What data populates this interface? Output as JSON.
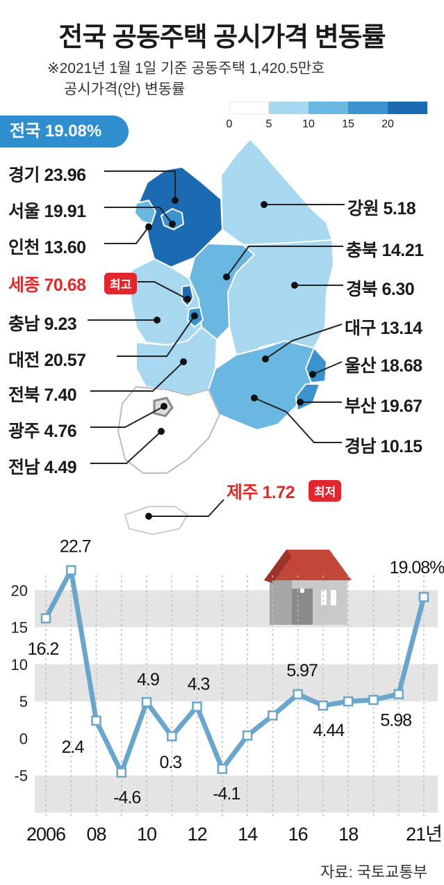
{
  "title": "전국 공동주택 공시가격 변동률",
  "note_line1": "※2021년 1월 1일 기준 공동주택 1,420.5만호",
  "note_line2": "공시가격(안) 변동률",
  "legend": {
    "ticks": [
      "0",
      "5",
      "10",
      "15",
      "20"
    ],
    "colors": [
      "#ffffff",
      "#a8d8f0",
      "#6ab8e2",
      "#3a92cf",
      "#1c6ab1"
    ]
  },
  "national": {
    "label": "전국",
    "value": "19.08%"
  },
  "regions": [
    {
      "name": "경기",
      "value": "23.96"
    },
    {
      "name": "서울",
      "value": "19.91"
    },
    {
      "name": "인천",
      "value": "13.60"
    },
    {
      "name": "세종",
      "value": "70.68"
    },
    {
      "name": "충남",
      "value": "9.23"
    },
    {
      "name": "대전",
      "value": "20.57"
    },
    {
      "name": "전북",
      "value": "7.40"
    },
    {
      "name": "광주",
      "value": "4.76"
    },
    {
      "name": "전남",
      "value": "4.49"
    },
    {
      "name": "강원",
      "value": "5.18"
    },
    {
      "name": "충북",
      "value": "14.21"
    },
    {
      "name": "경북",
      "value": "6.30"
    },
    {
      "name": "대구",
      "value": "13.14"
    },
    {
      "name": "울산",
      "value": "18.68"
    },
    {
      "name": "부산",
      "value": "19.67"
    },
    {
      "name": "경남",
      "value": "10.15"
    },
    {
      "name": "제주",
      "value": "1.72"
    }
  ],
  "tag_high": "최고",
  "tag_low": "최저",
  "chart_data": {
    "type": "line",
    "x": [
      2006,
      2007,
      2008,
      2009,
      2010,
      2011,
      2012,
      2013,
      2014,
      2015,
      2016,
      2017,
      2018,
      2019,
      2020,
      2021
    ],
    "values": [
      16.2,
      22.7,
      2.4,
      -4.6,
      4.9,
      0.3,
      4.3,
      -4.1,
      0.4,
      3.1,
      5.97,
      4.44,
      5.0,
      5.2,
      5.98,
      19.08
    ],
    "value_labels": [
      "16.2",
      "22.7",
      "2.4",
      "-4.6",
      "4.9",
      "0.3",
      "4.3",
      "-4.1",
      "",
      "",
      "5.97",
      "4.44",
      "",
      "",
      "5.98",
      "19.08%"
    ],
    "x_tick_labels": [
      "2006",
      "08",
      "10",
      "12",
      "14",
      "16",
      "18",
      "21년"
    ],
    "x_tick_years": [
      2006,
      2008,
      2010,
      2012,
      2014,
      2016,
      2018,
      2021
    ],
    "y_ticks": [
      20,
      15,
      10,
      5,
      0,
      -5
    ],
    "y_tick_labels": [
      "20",
      "15",
      "10",
      "5",
      "0",
      "-5"
    ],
    "ylim": [
      -10,
      25
    ],
    "line_color": "#6aa5cb",
    "band_color": "#e4e4e4"
  },
  "source": "자료: 국토교통부"
}
